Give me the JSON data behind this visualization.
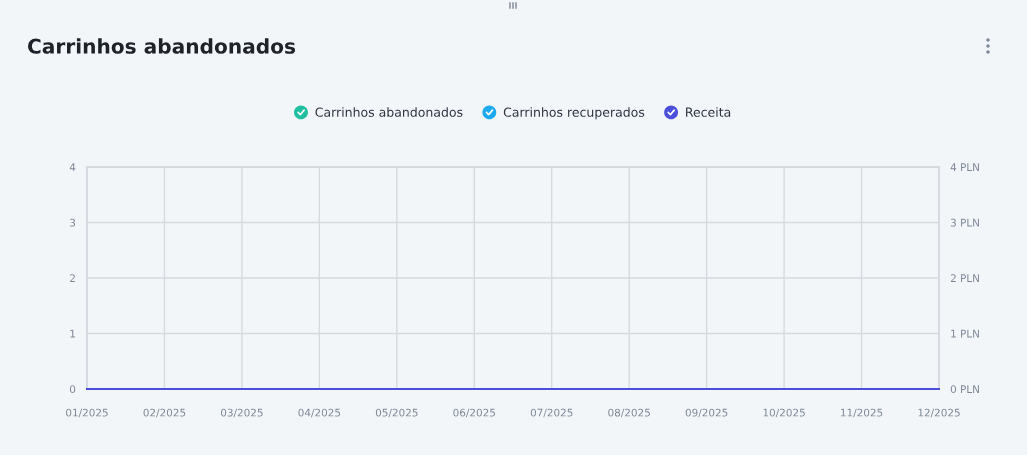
{
  "chart_data": {
    "type": "line",
    "title": "Carrinhos abandonados",
    "categories": [
      "01/2025",
      "02/2025",
      "03/2025",
      "04/2025",
      "05/2025",
      "06/2025",
      "07/2025",
      "08/2025",
      "09/2025",
      "10/2025",
      "11/2025",
      "12/2025"
    ],
    "series": [
      {
        "name": "Carrinhos abandonados",
        "color": "#1fbf9f",
        "values": [
          null,
          null,
          null,
          null,
          null,
          null,
          null,
          null,
          null,
          null,
          null,
          null
        ]
      },
      {
        "name": "Carrinhos recuperados",
        "color": "#1ea9ef",
        "values": [
          null,
          null,
          null,
          null,
          null,
          null,
          null,
          null,
          null,
          null,
          null,
          null
        ]
      },
      {
        "name": "Receita",
        "color": "#4b4fdc",
        "axis": "y2",
        "values": [
          0,
          0,
          0,
          0,
          0,
          0,
          0,
          0,
          0,
          0,
          0,
          0
        ]
      }
    ],
    "ylim": [
      0,
      4
    ],
    "yticks": [
      0,
      1,
      2,
      3,
      4
    ],
    "y2lim": [
      0,
      4
    ],
    "y2ticks": [
      {
        "value": 0,
        "label": "0 PLN"
      },
      {
        "value": 1,
        "label": "1 PLN"
      },
      {
        "value": 2,
        "label": "2 PLN"
      },
      {
        "value": 3,
        "label": "3 PLN"
      },
      {
        "value": 4,
        "label": "4 PLN"
      }
    ],
    "grid": true,
    "legend": "top",
    "marker": "none",
    "line_style": "solid"
  }
}
